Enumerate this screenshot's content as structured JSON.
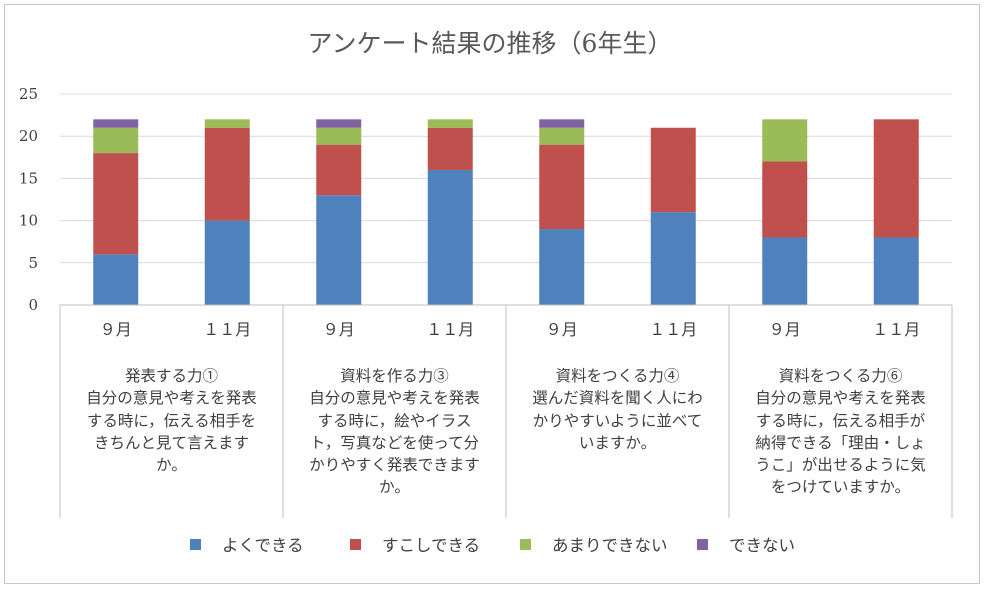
{
  "chart_data": {
    "type": "bar",
    "stacked": true,
    "title": "アンケート結果の推移（6年生）",
    "ylim": [
      0,
      25
    ],
    "yticks": [
      "0",
      "5",
      "10",
      "15",
      "20",
      "25"
    ],
    "grid": true,
    "legend_position": "bottom",
    "categories": [
      "９月",
      "１１月",
      "９月",
      "１１月",
      "９月",
      "１１月",
      "９月",
      "１１月"
    ],
    "groups": [
      {
        "label_lines": [
          "発表する力①",
          "自分の意見や考えを発表",
          "する時に，伝える相手を",
          "きちんと見て言えます",
          "か。"
        ]
      },
      {
        "label_lines": [
          "資料を作る力③",
          "自分の意見や考えを発表",
          "する時に，絵やイラス",
          "ト，写真などを使って分",
          "かりやすく発表できます",
          "か。"
        ]
      },
      {
        "label_lines": [
          "資料をつくる力④",
          "選んだ資料を聞く人にわ",
          "かりやすいように並べて",
          "いますか。"
        ]
      },
      {
        "label_lines": [
          "資料をつくる力⑥",
          "自分の意見や考えを発表",
          "する時に，伝える相手が",
          "納得できる「理由・しょ",
          "うこ」が出せるように気",
          "をつけていますか。"
        ]
      }
    ],
    "series": [
      {
        "name": "よくできる",
        "color": "#4F81BD",
        "values": [
          6,
          10,
          13,
          16,
          9,
          11,
          8,
          8
        ]
      },
      {
        "name": "すこしできる",
        "color": "#C0504D",
        "values": [
          12,
          11,
          6,
          5,
          10,
          10,
          9,
          14
        ]
      },
      {
        "name": "あまりできない",
        "color": "#9BBB59",
        "values": [
          3,
          1,
          2,
          1,
          2,
          0,
          5,
          0
        ]
      },
      {
        "name": "できない",
        "color": "#8064A2",
        "values": [
          1,
          0,
          1,
          0,
          1,
          0,
          0,
          0
        ]
      }
    ]
  }
}
